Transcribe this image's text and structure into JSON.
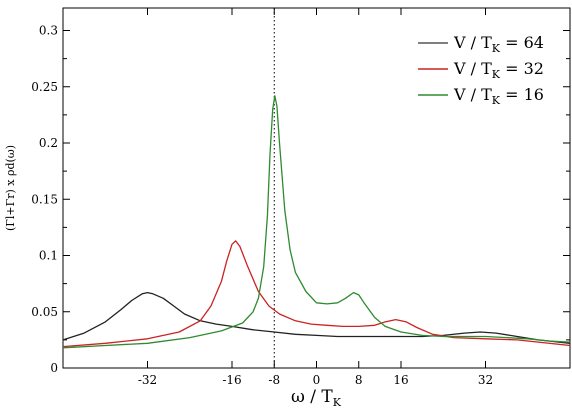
{
  "chart_data": {
    "type": "line",
    "title": "",
    "xlabel": "ω / T",
    "xlabel_sub": "K",
    "ylabel": "(Γl+Γr) x ρd(ω)",
    "xlim": [
      -48,
      48
    ],
    "ylim": [
      0,
      0.32
    ],
    "xticks": [
      {
        "value": -32,
        "label": "-32"
      },
      {
        "value": -16,
        "label": "-16"
      },
      {
        "value": -8,
        "label": "-8"
      },
      {
        "value": 0,
        "label": "0"
      },
      {
        "value": 8,
        "label": "8"
      },
      {
        "value": 16,
        "label": "16"
      },
      {
        "value": 32,
        "label": "32"
      }
    ],
    "yticks": [
      {
        "value": 0,
        "label": "0"
      },
      {
        "value": 0.05,
        "label": "0.05"
      },
      {
        "value": 0.1,
        "label": "0.1"
      },
      {
        "value": 0.15,
        "label": "0.15"
      },
      {
        "value": 0.2,
        "label": "0.2"
      },
      {
        "value": 0.25,
        "label": "0.25"
      },
      {
        "value": 0.3,
        "label": "0.3"
      }
    ],
    "vline": {
      "x": -8,
      "style": "dotted"
    },
    "legend": {
      "placement": "top-right",
      "entries": [
        {
          "prefix": "V / T",
          "sub": "K",
          "suffix": " = 64",
          "color": "#555555"
        },
        {
          "prefix": "V / T",
          "sub": "K",
          "suffix": " = 32",
          "color": "#cc2222"
        },
        {
          "prefix": "V / T",
          "sub": "K",
          "suffix": " = 16",
          "color": "#2e8b2e"
        }
      ]
    },
    "series": [
      {
        "color": "#222222",
        "points": [
          [
            -48,
            0.025
          ],
          [
            -44,
            0.031
          ],
          [
            -40,
            0.041
          ],
          [
            -37,
            0.052
          ],
          [
            -35,
            0.06
          ],
          [
            -33,
            0.066
          ],
          [
            -32,
            0.067
          ],
          [
            -31,
            0.066
          ],
          [
            -29,
            0.062
          ],
          [
            -27,
            0.055
          ],
          [
            -25,
            0.048
          ],
          [
            -22,
            0.042
          ],
          [
            -19,
            0.039
          ],
          [
            -16,
            0.037
          ],
          [
            -12,
            0.034
          ],
          [
            -8,
            0.032
          ],
          [
            -4,
            0.03
          ],
          [
            0,
            0.029
          ],
          [
            4,
            0.028
          ],
          [
            8,
            0.028
          ],
          [
            12,
            0.028
          ],
          [
            16,
            0.028
          ],
          [
            20,
            0.028
          ],
          [
            24,
            0.029
          ],
          [
            28,
            0.031
          ],
          [
            31,
            0.032
          ],
          [
            34,
            0.031
          ],
          [
            38,
            0.028
          ],
          [
            42,
            0.025
          ],
          [
            48,
            0.022
          ]
        ]
      },
      {
        "color": "#cc2222",
        "points": [
          [
            -48,
            0.019
          ],
          [
            -40,
            0.022
          ],
          [
            -32,
            0.026
          ],
          [
            -26,
            0.032
          ],
          [
            -22,
            0.042
          ],
          [
            -20,
            0.055
          ],
          [
            -18,
            0.077
          ],
          [
            -17,
            0.095
          ],
          [
            -16,
            0.11
          ],
          [
            -15.3,
            0.113
          ],
          [
            -14.5,
            0.108
          ],
          [
            -13,
            0.09
          ],
          [
            -11,
            0.068
          ],
          [
            -9,
            0.055
          ],
          [
            -7,
            0.048
          ],
          [
            -4,
            0.042
          ],
          [
            -1,
            0.039
          ],
          [
            2,
            0.038
          ],
          [
            5,
            0.037
          ],
          [
            8,
            0.037
          ],
          [
            11,
            0.038
          ],
          [
            13,
            0.041
          ],
          [
            15,
            0.043
          ],
          [
            17,
            0.041
          ],
          [
            19,
            0.036
          ],
          [
            22,
            0.03
          ],
          [
            26,
            0.027
          ],
          [
            32,
            0.026
          ],
          [
            38,
            0.025
          ],
          [
            42,
            0.023
          ],
          [
            48,
            0.02
          ]
        ]
      },
      {
        "color": "#2e8b2e",
        "points": [
          [
            -48,
            0.018
          ],
          [
            -40,
            0.02
          ],
          [
            -32,
            0.022
          ],
          [
            -24,
            0.027
          ],
          [
            -18,
            0.033
          ],
          [
            -14,
            0.04
          ],
          [
            -12,
            0.05
          ],
          [
            -11,
            0.062
          ],
          [
            -10,
            0.09
          ],
          [
            -9.3,
            0.135
          ],
          [
            -8.8,
            0.19
          ],
          [
            -8.3,
            0.23
          ],
          [
            -7.9,
            0.242
          ],
          [
            -7.5,
            0.233
          ],
          [
            -7,
            0.2
          ],
          [
            -6,
            0.14
          ],
          [
            -5,
            0.105
          ],
          [
            -4,
            0.085
          ],
          [
            -2,
            0.068
          ],
          [
            0,
            0.058
          ],
          [
            2,
            0.057
          ],
          [
            4,
            0.058
          ],
          [
            5.5,
            0.062
          ],
          [
            7,
            0.067
          ],
          [
            8,
            0.065
          ],
          [
            9,
            0.058
          ],
          [
            11,
            0.045
          ],
          [
            13,
            0.037
          ],
          [
            16,
            0.032
          ],
          [
            20,
            0.029
          ],
          [
            24,
            0.028
          ],
          [
            28,
            0.028
          ],
          [
            32,
            0.028
          ],
          [
            36,
            0.027
          ],
          [
            40,
            0.026
          ],
          [
            44,
            0.024
          ],
          [
            48,
            0.023
          ]
        ]
      }
    ]
  }
}
